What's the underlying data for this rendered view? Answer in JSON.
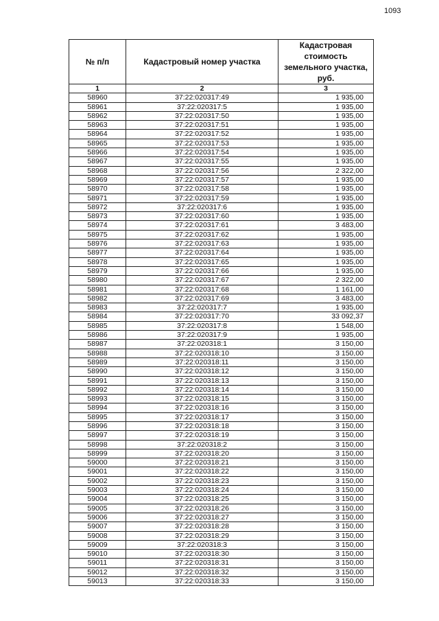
{
  "page_number": "1093",
  "table": {
    "headers": [
      "№ п/п",
      "Кадастровый номер участка",
      "Кадастровая стоимость земельного участка, руб."
    ],
    "column_numbers": [
      "1",
      "2",
      "3"
    ],
    "rows": [
      [
        "58960",
        "37:22:020317:49",
        "1 935,00"
      ],
      [
        "58961",
        "37:22:020317:5",
        "1 935,00"
      ],
      [
        "58962",
        "37:22:020317:50",
        "1 935,00"
      ],
      [
        "58963",
        "37:22:020317:51",
        "1 935,00"
      ],
      [
        "58964",
        "37:22:020317:52",
        "1 935,00"
      ],
      [
        "58965",
        "37:22:020317:53",
        "1 935,00"
      ],
      [
        "58966",
        "37:22:020317:54",
        "1 935,00"
      ],
      [
        "58967",
        "37:22:020317:55",
        "1 935,00"
      ],
      [
        "58968",
        "37:22:020317:56",
        "2 322,00"
      ],
      [
        "58969",
        "37:22:020317:57",
        "1 935,00"
      ],
      [
        "58970",
        "37:22:020317:58",
        "1 935,00"
      ],
      [
        "58971",
        "37:22:020317:59",
        "1 935,00"
      ],
      [
        "58972",
        "37:22:020317:6",
        "1 935,00"
      ],
      [
        "58973",
        "37:22:020317:60",
        "1 935,00"
      ],
      [
        "58974",
        "37:22:020317:61",
        "3 483,00"
      ],
      [
        "58975",
        "37:22:020317:62",
        "1 935,00"
      ],
      [
        "58976",
        "37:22:020317:63",
        "1 935,00"
      ],
      [
        "58977",
        "37:22:020317:64",
        "1 935,00"
      ],
      [
        "58978",
        "37:22:020317:65",
        "1 935,00"
      ],
      [
        "58979",
        "37:22:020317:66",
        "1 935,00"
      ],
      [
        "58980",
        "37:22:020317:67",
        "2 322,00"
      ],
      [
        "58981",
        "37:22:020317:68",
        "1 161,00"
      ],
      [
        "58982",
        "37:22:020317:69",
        "3 483,00"
      ],
      [
        "58983",
        "37:22:020317:7",
        "1 935,00"
      ],
      [
        "58984",
        "37:22:020317:70",
        "33 092,37"
      ],
      [
        "58985",
        "37:22:020317:8",
        "1 548,00"
      ],
      [
        "58986",
        "37:22:020317:9",
        "1 935,00"
      ],
      [
        "58987",
        "37:22:020318:1",
        "3 150,00"
      ],
      [
        "58988",
        "37:22:020318:10",
        "3 150,00"
      ],
      [
        "58989",
        "37:22:020318:11",
        "3 150,00"
      ],
      [
        "58990",
        "37:22:020318:12",
        "3 150,00"
      ],
      [
        "58991",
        "37:22:020318:13",
        "3 150,00"
      ],
      [
        "58992",
        "37:22:020318:14",
        "3 150,00"
      ],
      [
        "58993",
        "37:22:020318:15",
        "3 150,00"
      ],
      [
        "58994",
        "37:22:020318:16",
        "3 150,00"
      ],
      [
        "58995",
        "37:22:020318:17",
        "3 150,00"
      ],
      [
        "58996",
        "37:22:020318:18",
        "3 150,00"
      ],
      [
        "58997",
        "37:22:020318:19",
        "3 150,00"
      ],
      [
        "58998",
        "37:22:020318:2",
        "3 150,00"
      ],
      [
        "58999",
        "37:22:020318:20",
        "3 150,00"
      ],
      [
        "59000",
        "37:22:020318:21",
        "3 150,00"
      ],
      [
        "59001",
        "37:22:020318:22",
        "3 150,00"
      ],
      [
        "59002",
        "37:22:020318:23",
        "3 150,00"
      ],
      [
        "59003",
        "37:22:020318:24",
        "3 150,00"
      ],
      [
        "59004",
        "37:22:020318:25",
        "3 150,00"
      ],
      [
        "59005",
        "37:22:020318:26",
        "3 150,00"
      ],
      [
        "59006",
        "37:22:020318:27",
        "3 150,00"
      ],
      [
        "59007",
        "37:22:020318:28",
        "3 150,00"
      ],
      [
        "59008",
        "37:22:020318:29",
        "3 150,00"
      ],
      [
        "59009",
        "37:22:020318:3",
        "3 150,00"
      ],
      [
        "59010",
        "37:22:020318:30",
        "3 150,00"
      ],
      [
        "59011",
        "37:22:020318:31",
        "3 150,00"
      ],
      [
        "59012",
        "37:22:020318:32",
        "3 150,00"
      ],
      [
        "59013",
        "37:22:020318:33",
        "3 150,00"
      ]
    ]
  }
}
